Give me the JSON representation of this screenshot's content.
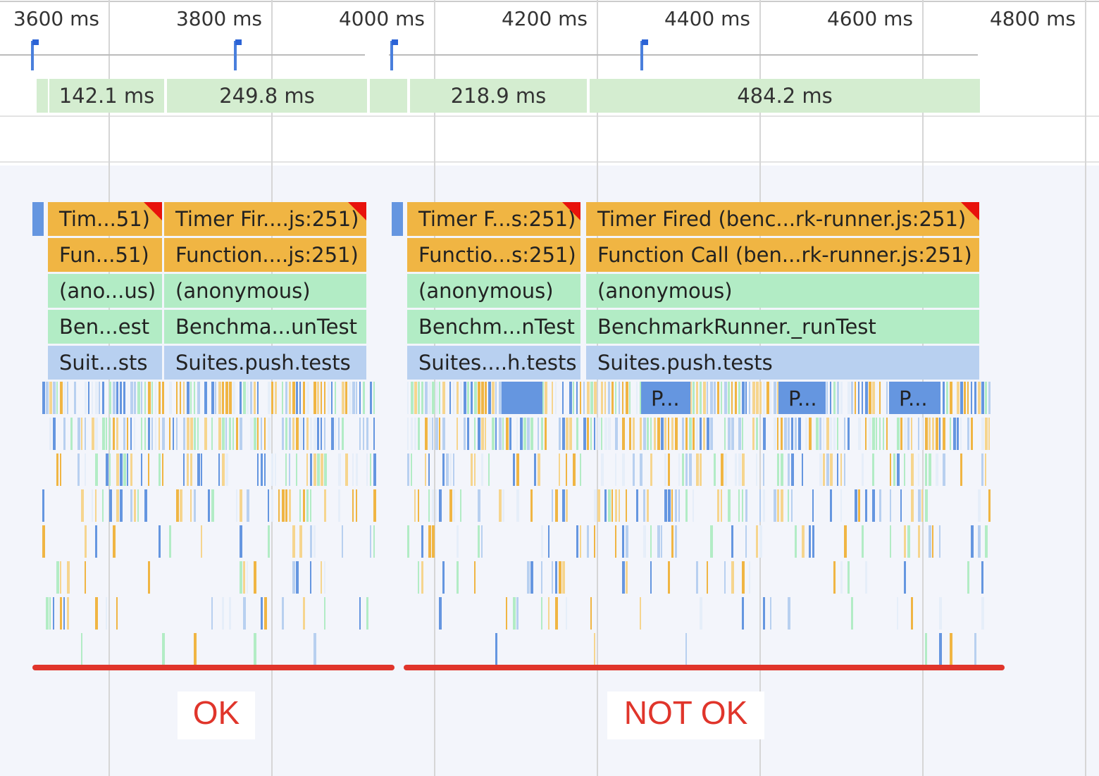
{
  "ruler": {
    "labels": [
      "3600 ms",
      "3800 ms",
      "4000 ms",
      "4200 ms",
      "4400 ms",
      "4600 ms",
      "4800 ms"
    ]
  },
  "frames": [
    "142.1 ms",
    "249.8 ms",
    "218.9 ms",
    "484.2 ms"
  ],
  "flame": {
    "rows": [
      [
        "Tim...51)",
        "Timer Fir....js:251)",
        "Timer F...s:251)",
        "Timer Fired (benc...rk-runner.js:251)"
      ],
      [
        "Fun...51)",
        "Function....js:251)",
        "Functio...s:251)",
        "Function Call (ben...rk-runner.js:251)"
      ],
      [
        "(ano...us)",
        "(anonymous)",
        "(anonymous)",
        "(anonymous)"
      ],
      [
        "Ben...est",
        "Benchma...unTest",
        "Benchm...nTest",
        "BenchmarkRunner._runTest"
      ],
      [
        "Suit...sts",
        "Suites.push.tests",
        "Suites....h.tests",
        "Suites.push.tests"
      ]
    ],
    "calls": [
      "P...",
      "P...",
      "P..."
    ]
  },
  "annotations": [
    "OK",
    "NOT OK"
  ]
}
